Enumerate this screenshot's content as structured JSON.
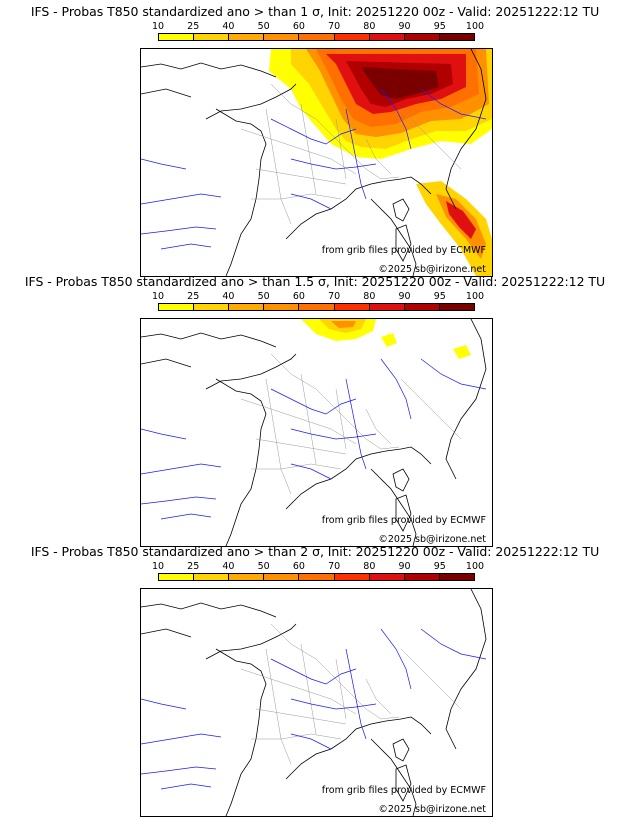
{
  "scale": {
    "labels": [
      "10",
      "25",
      "40",
      "50",
      "60",
      "70",
      "80",
      "90",
      "95",
      "100"
    ],
    "colors": [
      "#ffff00",
      "#ffd400",
      "#ffaa00",
      "#ff9000",
      "#ff7000",
      "#ff3000",
      "#e01010",
      "#b00000",
      "#7a0000"
    ]
  },
  "panels": [
    {
      "title": "IFS - Probas T850  standardized ano > than 1 σ, Init: 20251220 00z - Valid: 20251222:12 TU",
      "credit_source": "from grib files provided by ECMWF",
      "credit_copyright": "©2025 sb@irizone.net"
    },
    {
      "title": "IFS - Probas T850  standardized ano > than 1.5 σ, Init: 20251220 00z - Valid: 20251222:12 TU",
      "credit_source": "from grib files provided by ECMWF",
      "credit_copyright": "©2025 sb@irizone.net"
    },
    {
      "title": "IFS - Probas T850  standardized ano > than 2 σ, Init: 20251220 00z - Valid: 20251222:12 TU",
      "credit_source": "from grib files provided by ECMWF",
      "credit_copyright": "©2025 sb@irizone.net"
    }
  ]
}
